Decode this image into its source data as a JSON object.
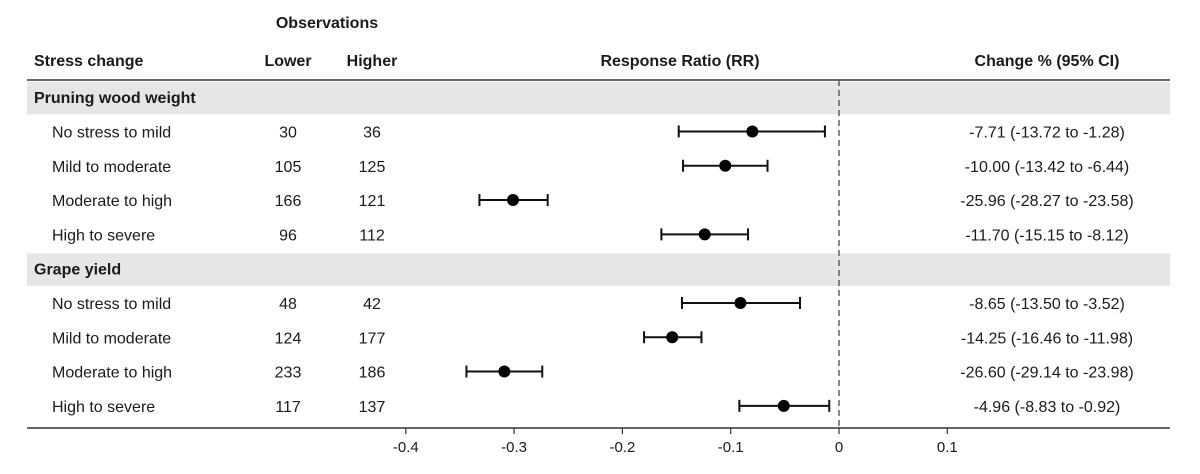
{
  "chart_data": {
    "type": "forest",
    "headers": {
      "observations": "Observations",
      "stress_change": "Stress change",
      "lower": "Lower",
      "higher": "Higher",
      "response_ratio": "Response Ratio (RR)",
      "change": "Change % (95% CI)"
    },
    "x_ticks": [
      "-0.4",
      "-0.3",
      "-0.2",
      "-0.1",
      "0",
      "0.1"
    ],
    "xlim": [
      -0.5,
      0.2
    ],
    "reference_line": 0,
    "groups": [
      {
        "name": "Pruning wood weight",
        "rows": [
          {
            "label": "No stress to mild",
            "lower": "30",
            "higher": "36",
            "rr": -0.08,
            "ci": [
              -0.148,
              -0.013
            ],
            "change": "-7.71 (-13.72 to -1.28)"
          },
          {
            "label": "Mild to moderate",
            "lower": "105",
            "higher": "125",
            "rr": -0.105,
            "ci": [
              -0.144,
              -0.066
            ],
            "change": "-10.00 (-13.42 to -6.44)"
          },
          {
            "label": "Moderate to high",
            "lower": "166",
            "higher": "121",
            "rr": -0.301,
            "ci": [
              -0.332,
              -0.269
            ],
            "change": "-25.96 (-28.27 to -23.58)"
          },
          {
            "label": "High to severe",
            "lower": "96",
            "higher": "112",
            "rr": -0.124,
            "ci": [
              -0.164,
              -0.084
            ],
            "change": "-11.70 (-15.15 to -8.12)"
          }
        ]
      },
      {
        "name": "Grape yield",
        "rows": [
          {
            "label": "No stress to mild",
            "lower": "48",
            "higher": "42",
            "rr": -0.091,
            "ci": [
              -0.145,
              -0.036
            ],
            "change": "-8.65 (-13.50 to -3.52)"
          },
          {
            "label": "Mild to moderate",
            "lower": "124",
            "higher": "177",
            "rr": -0.154,
            "ci": [
              -0.18,
              -0.127
            ],
            "change": "-14.25 (-16.46 to -11.98)"
          },
          {
            "label": "Moderate to high",
            "lower": "233",
            "higher": "186",
            "rr": -0.309,
            "ci": [
              -0.344,
              -0.274
            ],
            "change": "-26.60 (-29.14 to -23.98)"
          },
          {
            "label": "High to severe",
            "lower": "117",
            "higher": "137",
            "rr": -0.051,
            "ci": [
              -0.092,
              -0.009
            ],
            "change": "-4.96 (-8.83 to -0.92)"
          }
        ]
      }
    ]
  }
}
